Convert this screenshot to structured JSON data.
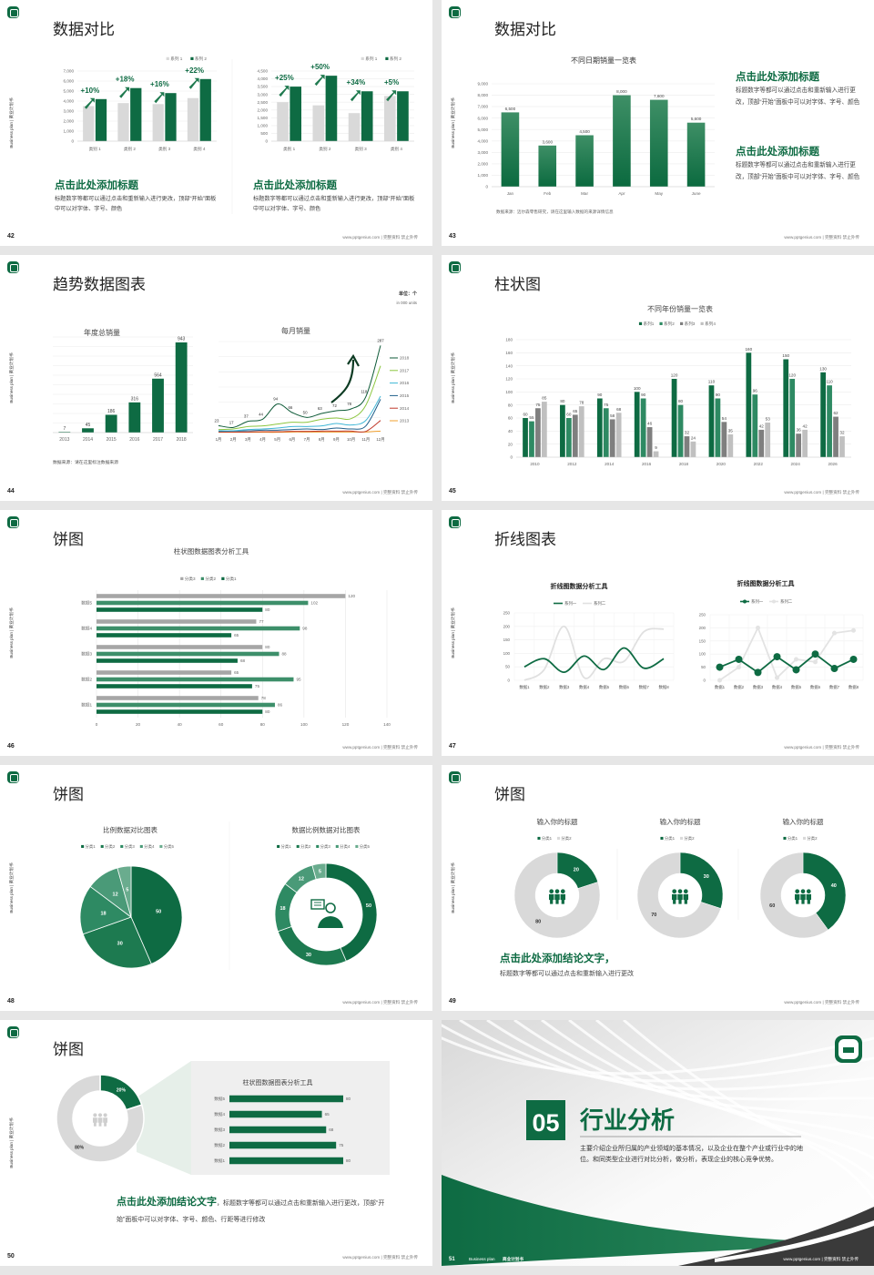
{
  "common": {
    "brand": "Business plan | 商业计划书",
    "footer": "www.pptgenius.com | 完整资料 禁止外传"
  },
  "colors": {
    "dark_green": "#0e6b43",
    "mid_green": "#2e8a63",
    "gray": "#d9d9d9",
    "dark_gray": "#7f7f7f",
    "light_gray": "#c0c0c0"
  },
  "slides": [
    {
      "page": "42",
      "title": "数据对比",
      "blocks": [
        {
          "heading": "点击此处添加标题",
          "body": "标题数字等都可以通过点击和重新输入进行更改，顶部“开始”面板中可以对字体、字号、颜色"
        },
        {
          "heading": "点击此处添加标题",
          "body": "标题数字等都可以通过点击和重新输入进行更改，顶部“开始”面板中可以对字体、字号、颜色"
        }
      ]
    },
    {
      "page": "43",
      "title": "数据对比",
      "source": "数据来源：迈尔森零售研究，请在这里输入数据的来源详情信息",
      "blocks": [
        {
          "heading": "点击此处添加标题",
          "body": "标题数字等都可以通过点击和重新输入进行更改，顶部“开始”面板中可以对字体、字号、颜色"
        },
        {
          "heading": "点击此处添加标题",
          "body": "标题数字等都可以通过点击和重新输入进行更改，顶部“开始”面板中可以对字体、字号、颜色"
        }
      ]
    },
    {
      "page": "44",
      "title": "趋势数据图表",
      "unit": "单位：个",
      "unit_en": "in 000 units",
      "source": "数据来源：请在这里标注数据来源"
    },
    {
      "page": "45",
      "title": "柱状图"
    },
    {
      "page": "46",
      "title": "饼图"
    },
    {
      "page": "47",
      "title": "折线图表"
    },
    {
      "page": "48",
      "title": "饼图"
    },
    {
      "page": "49",
      "title": "饼图",
      "conclusion": {
        "heading": "点击此处添加结论文字，",
        "body": "标题数字等都可以通过点击和重新输入进行更改"
      }
    },
    {
      "page": "50",
      "title": "饼图",
      "conclusion": {
        "heading": "点击此处添加结论文字",
        "body": "，标题数字等都可以通过点击和重新输入进行更改，顶部“开始”面板中可以对字体、字号、颜色、行距等进行修改"
      }
    },
    {
      "page": "51",
      "cover": true,
      "number": "05",
      "title": "行业分析",
      "desc": "主要介绍企业所归属的产业领域的基本情况，以及企业在整个产业或行业中的地位。和同类型企业进行对比分析，做分析，表现企业的核心竞争优势。",
      "brand_en": "Business plan",
      "brand_cn": "商业计划书"
    }
  ],
  "chart_data": [
    {
      "type": "bar",
      "categories": [
        "类别 1",
        "类别 2",
        "类别 3",
        "类别 4"
      ],
      "ylim": [
        0,
        7000
      ],
      "yticks": [
        0,
        1000,
        2000,
        3000,
        4000,
        5000,
        6000,
        7000
      ],
      "ytick_labels": [
        "0",
        "1,000",
        "2,000",
        "3,000",
        "4,000",
        "5,000",
        "6,000",
        "7,000"
      ],
      "series": [
        {
          "name": "系列 1",
          "color": "#d9d9d9",
          "values": [
            3500,
            3800,
            3700,
            4300
          ]
        },
        {
          "name": "系列 2",
          "color": "#0e6b43",
          "values": [
            4200,
            5300,
            4800,
            6200
          ]
        }
      ],
      "growth": [
        "+10%",
        "+18%",
        "+16%",
        "+22%"
      ],
      "legend": "top-right",
      "grid": true
    },
    {
      "type": "bar",
      "categories": [
        "类别 1",
        "类别 2",
        "类别 3",
        "类别 4"
      ],
      "ylim": [
        0,
        4500
      ],
      "yticks": [
        0,
        500,
        1000,
        1500,
        2000,
        2500,
        3000,
        3500,
        4000,
        4500
      ],
      "ytick_labels": [
        "0",
        "500",
        "1,000",
        "1,500",
        "2,000",
        "2,500",
        "3,000",
        "3,500",
        "4,000",
        "4,500"
      ],
      "series": [
        {
          "name": "系列 1",
          "color": "#d9d9d9",
          "values": [
            2500,
            2300,
            1800,
            2900
          ]
        },
        {
          "name": "系列 2",
          "color": "#0e6b43",
          "values": [
            3500,
            4200,
            3200,
            3200
          ]
        }
      ],
      "growth": [
        "+25%",
        "+50%",
        "+34%",
        "+5%"
      ],
      "legend": "top-right",
      "grid": true
    },
    {
      "type": "bar",
      "title": "不同日期销量一览表",
      "categories": [
        "Jan",
        "Feb",
        "Mar",
        "Apr",
        "May",
        "June"
      ],
      "ylim": [
        0,
        9000
      ],
      "yticks": [
        0,
        1000,
        2000,
        3000,
        4000,
        5000,
        6000,
        7000,
        8000,
        9000
      ],
      "ytick_labels": [
        "0",
        "1,000",
        "2,000",
        "3,000",
        "4,000",
        "5,000",
        "6,000",
        "7,000",
        "8,000",
        "9,000"
      ],
      "series": [
        {
          "color": "#0e6b43",
          "values": [
            6500,
            3600,
            4500,
            8000,
            7600,
            5600
          ],
          "labels": [
            "6,500",
            "3,600",
            "4,500",
            "8,000",
            "7,600",
            "5,600"
          ]
        }
      ],
      "grid": true
    },
    {
      "type": "bar",
      "title": "年度总销量",
      "categories": [
        "2013",
        "2014",
        "2015",
        "2016",
        "2017",
        "2018"
      ],
      "ylim": [
        0,
        1000
      ],
      "yticks": [
        0,
        100,
        200,
        300,
        400,
        500,
        600,
        700,
        800,
        900,
        1000
      ],
      "series": [
        {
          "color": "#0e6b43",
          "values": [
            7,
            45,
            186,
            316,
            564,
            943
          ]
        }
      ],
      "grid": true
    },
    {
      "type": "line",
      "title": "每月销量",
      "categories": [
        "1月",
        "2月",
        "3月",
        "4月",
        "5月",
        "6月",
        "7月",
        "8月",
        "9月",
        "10月",
        "11月",
        "12月"
      ],
      "ylim": [
        0,
        300
      ],
      "yticks": [
        0,
        50,
        100,
        150,
        200,
        250,
        300
      ],
      "legend": "right",
      "grid": true,
      "series": [
        {
          "name": "2018",
          "color": "#0d5a37",
          "values": [
            23,
            17,
            37,
            44,
            94,
            66,
            50,
            63,
            72,
            78,
            118,
            287
          ],
          "labeled": true
        },
        {
          "name": "2017",
          "color": "#8cc63f",
          "values": [
            10,
            12,
            20,
            22,
            28,
            34,
            34,
            44,
            48,
            46,
            90,
            220
          ]
        },
        {
          "name": "2016",
          "color": "#3fb6d6",
          "values": [
            6,
            6,
            10,
            12,
            15,
            20,
            20,
            22,
            30,
            25,
            40,
            120
          ]
        },
        {
          "name": "2015",
          "color": "#1f5f8b",
          "values": [
            4,
            5,
            6,
            8,
            8,
            10,
            12,
            10,
            15,
            12,
            22,
            110
          ]
        },
        {
          "name": "2014",
          "color": "#c0392b",
          "values": [
            2,
            2,
            2,
            3,
            3,
            4,
            4,
            5,
            5,
            5,
            4,
            40
          ]
        },
        {
          "name": "2013",
          "color": "#f0a030",
          "values": [
            1,
            1,
            1,
            1,
            1,
            2,
            2,
            2,
            2,
            2,
            2,
            5
          ]
        }
      ]
    },
    {
      "type": "bar",
      "title": "不同年份销量一览表",
      "categories": [
        "2010",
        "2012",
        "2014",
        "2016",
        "2018",
        "2020",
        "2022",
        "2024",
        "2026"
      ],
      "ylim": [
        0,
        180
      ],
      "yticks": [
        0,
        20,
        40,
        60,
        80,
        100,
        120,
        140,
        160,
        180
      ],
      "legend": "top",
      "grid": true,
      "series": [
        {
          "name": "系列1",
          "color": "#0e6b43",
          "values": [
            60,
            80,
            90,
            100,
            120,
            110,
            160,
            150,
            130
          ]
        },
        {
          "name": "系列2",
          "color": "#2e8a63",
          "values": [
            55,
            60,
            75,
            90,
            80,
            90,
            96,
            120,
            110
          ]
        },
        {
          "name": "系列3",
          "color": "#7f7f7f",
          "values": [
            75,
            65,
            58,
            46,
            32,
            54,
            42,
            36,
            62
          ]
        },
        {
          "name": "系列4",
          "color": "#c0c0c0",
          "values": [
            85,
            78,
            68,
            9,
            24,
            35,
            53,
            42,
            32
          ]
        }
      ]
    },
    {
      "type": "bar",
      "orientation": "horizontal",
      "title": "柱状图数据图表分析工具",
      "categories": [
        "数据1",
        "数据2",
        "数据3",
        "数据4",
        "数据5"
      ],
      "xlim": [
        0,
        140
      ],
      "xticks": [
        0,
        20,
        40,
        60,
        80,
        100,
        120,
        140
      ],
      "legend": "top",
      "grid": true,
      "series": [
        {
          "name": "分类3",
          "color": "#a6a6a6",
          "values": [
            78,
            65,
            80,
            77,
            120
          ]
        },
        {
          "name": "分类2",
          "color": "#3d8f6a",
          "values": [
            86,
            95,
            88,
            98,
            102
          ]
        },
        {
          "name": "分类1",
          "color": "#0e6b43",
          "values": [
            80,
            75,
            68,
            65,
            80
          ]
        }
      ]
    },
    {
      "type": "line",
      "title": "折线图数据分析工具",
      "categories": [
        "数据1",
        "数据2",
        "数据3",
        "数据4",
        "数据5",
        "数据6",
        "数据7",
        "数据8"
      ],
      "ylim": [
        0,
        250
      ],
      "yticks": [
        0,
        50,
        100,
        150,
        200,
        250
      ],
      "legend": "top",
      "grid": true,
      "series": [
        {
          "name": "系列一",
          "color": "#0e6b43",
          "values": [
            50,
            80,
            30,
            90,
            40,
            120,
            45,
            80
          ]
        },
        {
          "name": "系列二",
          "color": "#e0e0e0",
          "values": [
            0,
            40,
            200,
            10,
            80,
            70,
            180,
            190
          ]
        }
      ]
    },
    {
      "type": "line",
      "title": "折线图数据分析工具",
      "categories": [
        "数据1",
        "数据2",
        "数据3",
        "数据4",
        "数据5",
        "数据6",
        "数据7",
        "数据8"
      ],
      "ylim": [
        0,
        250
      ],
      "yticks": [
        0,
        50,
        100,
        150,
        200,
        250
      ],
      "legend": "top",
      "grid": true,
      "markers": true,
      "series": [
        {
          "name": "系列一",
          "color": "#0e6b43",
          "values": [
            50,
            80,
            30,
            90,
            40,
            100,
            45,
            80
          ]
        },
        {
          "name": "系列二",
          "color": "#e3e3e3",
          "values": [
            0,
            50,
            200,
            10,
            80,
            70,
            180,
            190
          ]
        }
      ]
    },
    {
      "type": "pie",
      "title": "比例数据对比图表",
      "labels": [
        "分类1",
        "分类2",
        "分类3",
        "分类4",
        "分类5"
      ],
      "values": [
        50,
        30,
        18,
        12,
        5
      ],
      "colors": [
        "#0e6b43",
        "#1d7a50",
        "#2e8a63",
        "#4a9a78",
        "#6aac8e"
      ],
      "legend": "top"
    },
    {
      "type": "pie",
      "donut": true,
      "title": "数据比例数据对比图表",
      "labels": [
        "分类1",
        "分类2",
        "分类3",
        "分类4",
        "分类5"
      ],
      "values": [
        50,
        30,
        18,
        12,
        5
      ],
      "colors": [
        "#0e6b43",
        "#1d7a50",
        "#2e8a63",
        "#4a9a78",
        "#6aac8e"
      ],
      "legend": "top",
      "center_icon": "businessman-chat-icon"
    },
    {
      "type": "pie",
      "donut": true,
      "title": "输入你的标题",
      "labels": [
        "分类1",
        "分类2"
      ],
      "values": [
        20,
        80
      ],
      "colors": [
        "#0e6b43",
        "#d9d9d9"
      ],
      "legend": "top",
      "center_icon": "people-group-icon"
    },
    {
      "type": "pie",
      "donut": true,
      "title": "输入你的标题",
      "labels": [
        "分类1",
        "分类2"
      ],
      "values": [
        30,
        70
      ],
      "colors": [
        "#0e6b43",
        "#d9d9d9"
      ],
      "legend": "top",
      "center_icon": "people-group-icon"
    },
    {
      "type": "pie",
      "donut": true,
      "title": "输入你的标题",
      "labels": [
        "分类1",
        "分类2"
      ],
      "values": [
        40,
        60
      ],
      "colors": [
        "#0e6b43",
        "#d9d9d9"
      ],
      "legend": "top",
      "center_icon": "people-group-icon"
    },
    {
      "type": "pie",
      "donut": true,
      "values": [
        20,
        80
      ],
      "value_labels": [
        "20%",
        "80%"
      ],
      "colors": [
        "#0e6b43",
        "#d9d9d9"
      ],
      "center_icon": "team-icon"
    },
    {
      "type": "bar",
      "orientation": "horizontal",
      "title": "柱状图数据图表分析工具",
      "categories": [
        "数据1",
        "数据2",
        "数据3",
        "数据4",
        "数据5"
      ],
      "xlim": [
        0,
        80
      ],
      "series": [
        {
          "color": "#0e6b43",
          "values": [
            80,
            75,
            68,
            65,
            80
          ]
        }
      ]
    }
  ]
}
